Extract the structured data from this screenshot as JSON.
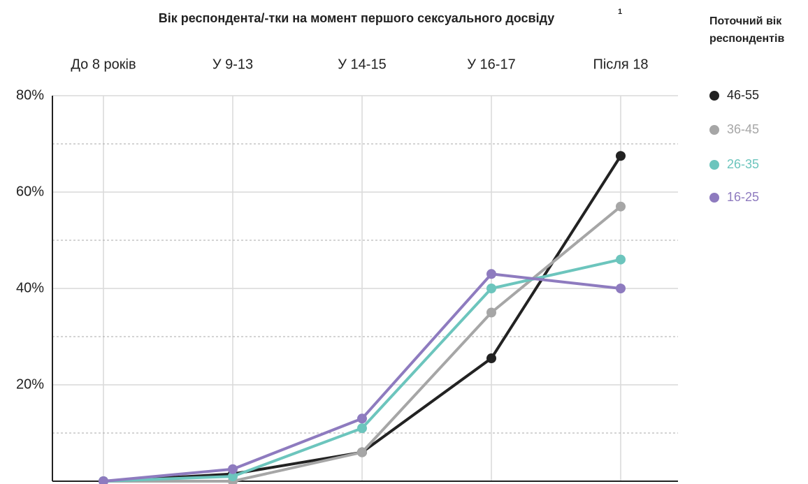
{
  "chart_data": {
    "type": "line",
    "title": "Вік респондента/-тки на момент першого сексуального досвіду",
    "title_note": "1",
    "legend_title": [
      "Поточний вік",
      "респондентів"
    ],
    "categories": [
      "До 8 років",
      "У 9-13",
      "У 14-15",
      "У 16-17",
      "Після 18"
    ],
    "series": [
      {
        "name": "46-55",
        "color": "#222222",
        "values": [
          0,
          1.5,
          6,
          25.5,
          67.5
        ]
      },
      {
        "name": "36-45",
        "color": "#a6a6a6",
        "values": [
          0,
          0,
          6,
          35,
          57
        ]
      },
      {
        "name": "26-35",
        "color": "#6cc5bd",
        "values": [
          0,
          1,
          11,
          40,
          46
        ]
      },
      {
        "name": "16-25",
        "color": "#8e7bbf",
        "values": [
          0,
          2.5,
          13,
          43,
          40
        ]
      }
    ],
    "ylim": [
      0,
      80
    ],
    "yticks": [
      {
        "value": 20,
        "label": "20%"
      },
      {
        "value": 40,
        "label": "40%"
      },
      {
        "value": 60,
        "label": "60%"
      },
      {
        "value": 80,
        "label": "80%"
      }
    ],
    "yminor": [
      10,
      30,
      50,
      70
    ],
    "grid": true
  }
}
